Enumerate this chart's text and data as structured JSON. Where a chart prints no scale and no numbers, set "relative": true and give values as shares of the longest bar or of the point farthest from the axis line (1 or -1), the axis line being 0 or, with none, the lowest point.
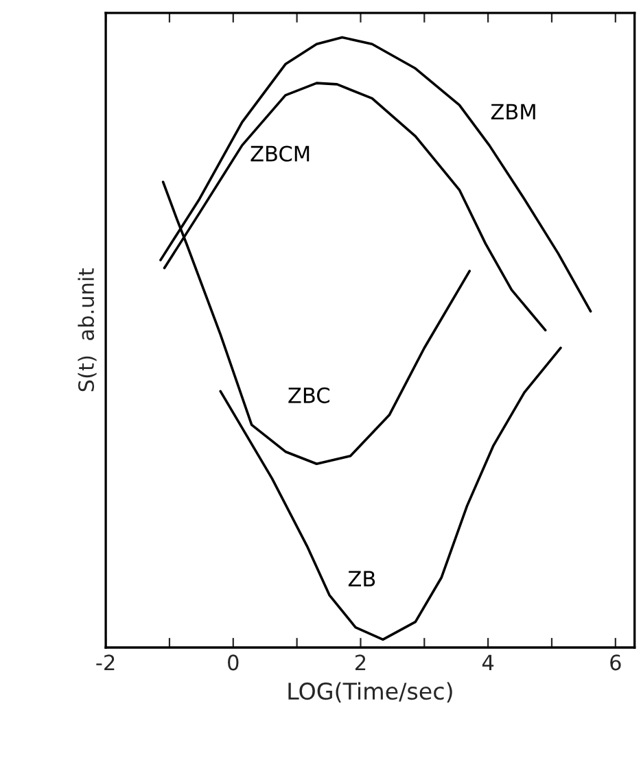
{
  "chart_data": {
    "type": "line",
    "relative": true,
    "xlabel": "LOG(Time/sec)",
    "ylabel": "S(t)  ab.unit",
    "xlim": [
      -2,
      6.3
    ],
    "xticks": [
      -2,
      {
        "value": -1,
        "label": null
      },
      0,
      {
        "value": 1,
        "label": null
      },
      2,
      {
        "value": 3,
        "label": null
      },
      4,
      {
        "value": 5,
        "label": null
      },
      6
    ],
    "grid": false,
    "legend": false,
    "marker": "none",
    "line_style": "solid",
    "series": [
      {
        "name": "ZBM",
        "color": "#000000",
        "x": [
          -1.14,
          -0.53,
          0.14,
          0.82,
          1.31,
          1.71,
          2.18,
          2.86,
          3.55,
          4.02,
          4.57,
          5.1,
          5.61
        ],
        "values": [
          0.635,
          0.735,
          0.861,
          0.956,
          0.989,
          1.0,
          0.989,
          0.949,
          0.889,
          0.823,
          0.735,
          0.646,
          0.551
        ]
      },
      {
        "name": "ZBCM",
        "color": "#000000",
        "x": [
          -1.08,
          -0.53,
          0.14,
          0.82,
          1.31,
          1.63,
          2.18,
          2.86,
          3.55,
          3.96,
          4.37,
          4.9
        ],
        "values": [
          0.622,
          0.712,
          0.823,
          0.905,
          0.925,
          0.923,
          0.9,
          0.838,
          0.75,
          0.662,
          0.586,
          0.52
        ]
      },
      {
        "name": "ZBC",
        "color": "#000000",
        "x": [
          -1.1,
          -0.88,
          -0.73,
          -0.2,
          0.29,
          0.82,
          1.31,
          1.84,
          2.45,
          3.0,
          3.71
        ],
        "values": [
          0.763,
          0.701,
          0.661,
          0.513,
          0.365,
          0.321,
          0.301,
          0.314,
          0.381,
          0.491,
          0.617
        ]
      },
      {
        "name": "ZB",
        "color": "#000000",
        "x": [
          -0.2,
          0.61,
          1.16,
          1.51,
          1.92,
          2.35,
          2.86,
          3.27,
          3.67,
          4.08,
          4.57,
          5.14
        ],
        "values": [
          0.42,
          0.277,
          0.166,
          0.086,
          0.033,
          0.013,
          0.042,
          0.115,
          0.232,
          0.33,
          0.418,
          0.491
        ]
      }
    ]
  }
}
